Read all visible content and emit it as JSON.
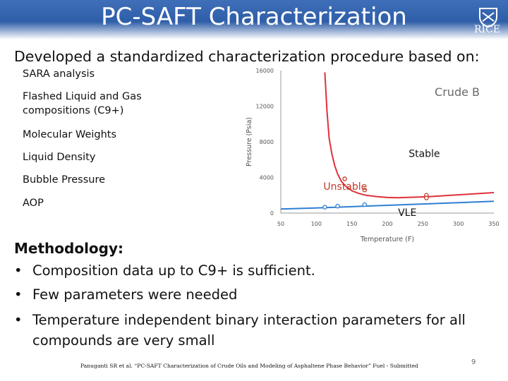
{
  "header": {
    "title": "PC-SAFT Characterization",
    "logo_text": "RICE",
    "logo_icon": "rice-shield-icon"
  },
  "intro": "Developed a standardized characterization procedure based on:",
  "criteria": [
    [
      "SARA analysis"
    ],
    [
      "Flashed Liquid and Gas",
      "compositions (C9+)"
    ],
    [
      "Molecular Weights"
    ],
    [
      "Liquid Density"
    ],
    [
      "Bubble Pressure"
    ],
    [
      "AOP"
    ]
  ],
  "methodology": {
    "title": "Methodology:",
    "bullet_char": "•",
    "items": [
      [
        "Composition data up to C9+ is sufficient."
      ],
      [
        "Few parameters were needed"
      ],
      [
        "Temperature independent binary interaction parameters for all",
        "compounds are very small"
      ]
    ]
  },
  "citation": "Panuganti SR et al. “PC-SAFT Characterization of Crude Oils and Modeling of Asphaltene Phase Behavior” Fuel - Submitted",
  "page_number": "9",
  "chart_data": {
    "type": "line",
    "title": "Crude B",
    "xlabel": "Temperature (F)",
    "ylabel": "Pressure (Psia)",
    "xlim": [
      50,
      350
    ],
    "ylim": [
      0,
      16000
    ],
    "xticks": [
      50,
      100,
      150,
      200,
      250,
      300,
      350
    ],
    "yticks": [
      0,
      4000,
      8000,
      12000,
      16000
    ],
    "grid": false,
    "annotations": [
      {
        "text": "Stable",
        "x": 230,
        "y": 6300,
        "color": "#111111"
      },
      {
        "text": "Unstable",
        "x": 110,
        "y": 2600,
        "color": "#c0392b"
      },
      {
        "text": "VLE",
        "x": 215,
        "y": -300,
        "color": "#111111"
      }
    ],
    "series": [
      {
        "role": "upper AOP curve",
        "color": "#e0303a",
        "x": [
          112,
          115,
          118,
          122,
          126,
          130,
          135,
          140,
          150,
          160,
          170,
          185,
          200,
          215,
          230,
          245,
          260,
          280,
          300,
          320,
          350
        ],
        "y": [
          15800,
          11500,
          8400,
          6600,
          5300,
          4400,
          3600,
          3100,
          2500,
          2200,
          2000,
          1850,
          1750,
          1730,
          1760,
          1800,
          1850,
          1950,
          2050,
          2150,
          2300
        ]
      },
      {
        "role": "bubble pressure curve",
        "color": "#2f7fd1",
        "x": [
          50,
          100,
          150,
          200,
          250,
          300,
          350
        ],
        "y": [
          450,
          580,
          720,
          870,
          1020,
          1170,
          1320
        ]
      }
    ],
    "points": [
      {
        "role": "upper AOP data",
        "color": "#c0392b",
        "x": [
          140,
          168,
          255,
          255
        ],
        "y": [
          3850,
          2600,
          2000,
          1700
        ]
      },
      {
        "role": "bubble pressure data",
        "color": "#2f7fd1",
        "x": [
          112,
          130,
          168
        ],
        "y": [
          660,
          780,
          950
        ]
      }
    ]
  }
}
